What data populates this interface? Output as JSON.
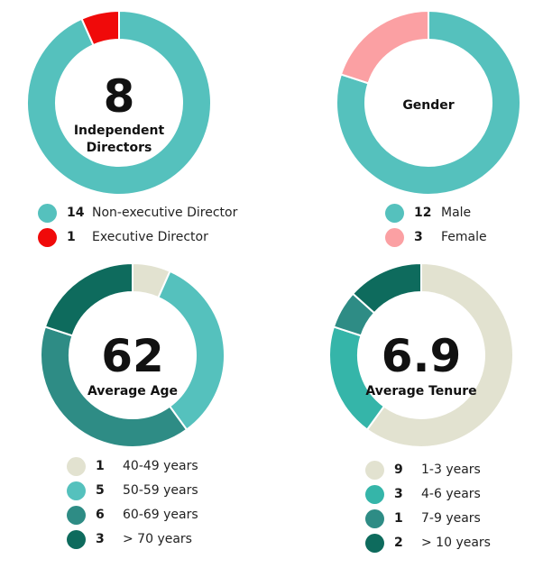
{
  "chart_data": [
    {
      "type": "pie",
      "center_value": "8",
      "center_label_lines": [
        "Independent",
        "Directors"
      ],
      "slices": [
        {
          "count": "14",
          "label": "Non-executive Director",
          "value": 14,
          "color": "#55c1bd"
        },
        {
          "count": "1",
          "label": "Executive Director",
          "value": 1,
          "color": "#f00a0a"
        }
      ]
    },
    {
      "type": "pie",
      "center_value": "",
      "center_label_lines": [
        "Gender"
      ],
      "slices": [
        {
          "count": "12",
          "label": "Male",
          "value": 12,
          "color": "#55c1bd"
        },
        {
          "count": "3",
          "label": "Female",
          "value": 3,
          "color": "#fba0a3"
        }
      ]
    },
    {
      "type": "pie",
      "center_value": "62",
      "center_label_lines": [
        "Average Age"
      ],
      "slices": [
        {
          "count": "1",
          "label": "40-49 years",
          "value": 1,
          "color": "#e2e2d0"
        },
        {
          "count": "5",
          "label": "50-59 years",
          "value": 5,
          "color": "#55c1bd"
        },
        {
          "count": "6",
          "label": "60-69 years",
          "value": 6,
          "color": "#2e8c85"
        },
        {
          "count": "3",
          "label": "> 70 years",
          "value": 3,
          "color": "#0e6b5d"
        }
      ]
    },
    {
      "type": "pie",
      "center_value": "6.9",
      "center_label_lines": [
        "Average Tenure"
      ],
      "slices": [
        {
          "count": "9",
          "label": "1-3 years",
          "value": 9,
          "color": "#e2e2d0"
        },
        {
          "count": "3",
          "label": "4-6 years",
          "value": 3,
          "color": "#35b5a9"
        },
        {
          "count": "1",
          "label": "7-9 years",
          "value": 1,
          "color": "#2e8c85"
        },
        {
          "count": "2",
          "label": "> 10 years",
          "value": 2,
          "color": "#0e6b5d"
        }
      ]
    }
  ]
}
